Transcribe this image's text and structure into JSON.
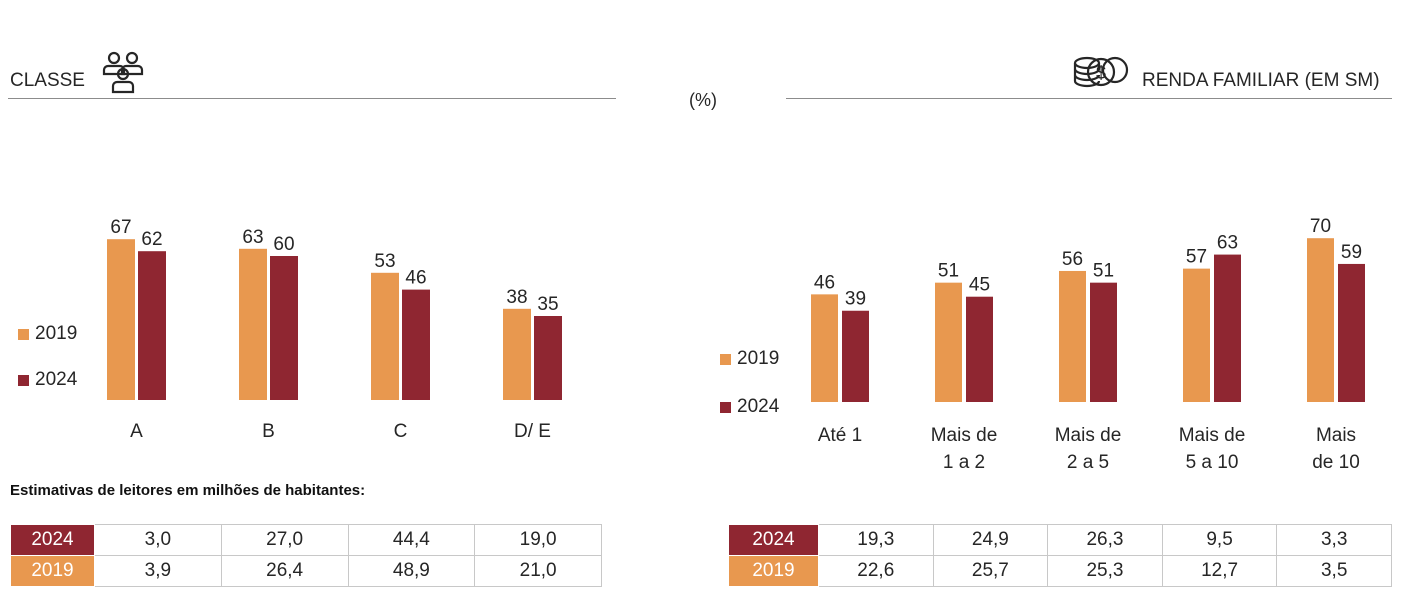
{
  "unit_label": "(%)",
  "colors": {
    "s2019": "#e8984f",
    "s2024": "#8f2631"
  },
  "left_panel": {
    "title": "CLASSE",
    "icon": "people-icon",
    "legend": [
      "2019",
      "2024"
    ],
    "footnote": "Estimativas de leitores em milhões de habitantes:",
    "table": [
      {
        "year": "2024",
        "values": [
          "3,0",
          "27,0",
          "44,4",
          "19,0"
        ]
      },
      {
        "year": "2019",
        "values": [
          "3,9",
          "26,4",
          "48,9",
          "21,0"
        ]
      }
    ]
  },
  "right_panel": {
    "title": "RENDA FAMILIAR (EM SM)",
    "icon": "coins-dollar-icon",
    "legend": [
      "2019",
      "2024"
    ],
    "table": [
      {
        "year": "2024",
        "values": [
          "19,3",
          "24,9",
          "26,3",
          "9,5",
          "3,3"
        ]
      },
      {
        "year": "2019",
        "values": [
          "22,6",
          "25,7",
          "25,3",
          "12,7",
          "3,5"
        ]
      }
    ]
  },
  "chart_data": [
    {
      "type": "bar",
      "categories": [
        "A",
        "B",
        "C",
        "D/ E"
      ],
      "series": [
        {
          "name": "2019",
          "values": [
            67,
            63,
            53,
            38
          ]
        },
        {
          "name": "2024",
          "values": [
            62,
            60,
            46,
            35
          ]
        }
      ],
      "title": "CLASSE",
      "ylabel": "(%)",
      "data_labels": true,
      "legend_position": "left"
    },
    {
      "type": "bar",
      "categories": [
        [
          "Até 1"
        ],
        [
          "Mais de",
          "1 a 2"
        ],
        [
          "Mais de",
          "2 a 5"
        ],
        [
          "Mais de",
          "5 a 10"
        ],
        [
          "Mais",
          "de 10"
        ]
      ],
      "series": [
        {
          "name": "2019",
          "values": [
            46,
            51,
            56,
            57,
            70
          ]
        },
        {
          "name": "2024",
          "values": [
            39,
            45,
            51,
            63,
            59
          ]
        }
      ],
      "title": "RENDA FAMILIAR (EM SM)",
      "ylabel": "(%)",
      "data_labels": true,
      "legend_position": "left"
    }
  ]
}
